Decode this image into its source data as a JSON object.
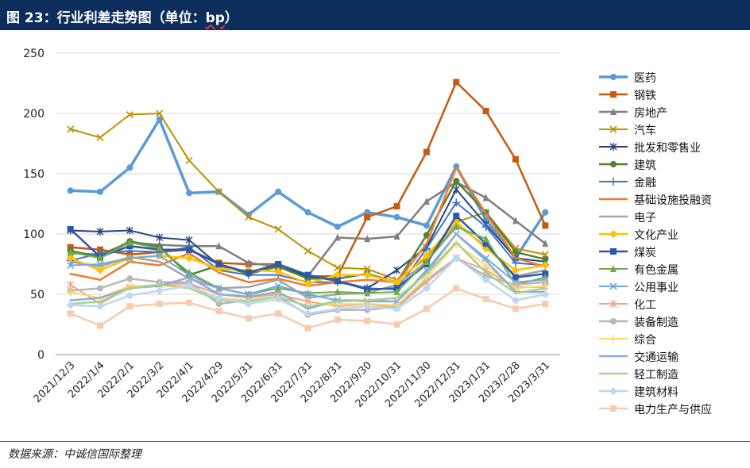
{
  "header": {
    "title_prefix": "图 23：行业利差走势图（单位：",
    "title_unit": "bp",
    "title_suffix": "）"
  },
  "footer": {
    "source": "数据来源：中诚信国际整理"
  },
  "chart_data": {
    "type": "line",
    "title": "",
    "xlabel": "",
    "ylabel": "",
    "ylim": [
      0,
      250
    ],
    "yticks": [
      0,
      50,
      100,
      150,
      200,
      250
    ],
    "grid": "horizontal",
    "legend_position": "right",
    "categories": [
      "2021/12/3",
      "2022/1/4",
      "2022/2/1",
      "2022/3/2",
      "2022/4/1",
      "2022/4/29",
      "2022/5/31",
      "2022/6/31",
      "2022/7/31",
      "2022/8/31",
      "2022/9/30",
      "2022/10/31",
      "2022/11/30",
      "2022/12/31",
      "2023/1/31",
      "2023/2/28",
      "2023/3/31"
    ],
    "series": [
      {
        "name": "医药",
        "color": "#5b9bd5",
        "marker": "circle",
        "width": 3.5,
        "values": [
          136,
          135,
          155,
          195,
          134,
          135,
          116,
          135,
          118,
          106,
          118,
          114,
          107,
          156,
          112,
          80,
          118
        ]
      },
      {
        "name": "钢铁",
        "color": "#c55a11",
        "marker": "square",
        "width": 2.5,
        "values": [
          89,
          87,
          83,
          85,
          87,
          76,
          75,
          75,
          65,
          65,
          114,
          123,
          168,
          226,
          202,
          162,
          107
        ]
      },
      {
        "name": "房地产",
        "color": "#7f7f7f",
        "marker": "triangle",
        "width": 2.5,
        "values": [
          84,
          83,
          93,
          91,
          90,
          90,
          76,
          73,
          65,
          97,
          96,
          98,
          127,
          143,
          130,
          111,
          92
        ]
      },
      {
        "name": "汽车",
        "color": "#bf9000",
        "marker": "x",
        "width": 2,
        "values": [
          187,
          180,
          199,
          200,
          161,
          135,
          114,
          104,
          86,
          72,
          71,
          62,
          80,
          110,
          118,
          88,
          83
        ]
      },
      {
        "name": "批发和零售业",
        "color": "#264478",
        "marker": "asterisk",
        "width": 2,
        "values": [
          103,
          102,
          103,
          97,
          95,
          74,
          68,
          73,
          65,
          61,
          55,
          70,
          89,
          137,
          108,
          80,
          77
        ]
      },
      {
        "name": "建筑",
        "color": "#548235",
        "marker": "circle",
        "width": 2.5,
        "values": [
          86,
          81,
          94,
          89,
          66,
          74,
          67,
          73,
          63,
          63,
          67,
          60,
          99,
          144,
          118,
          85,
          79
        ]
      },
      {
        "name": "金融",
        "color": "#4472c4",
        "marker": "plus",
        "width": 2,
        "values": [
          78,
          84,
          86,
          85,
          89,
          70,
          66,
          66,
          60,
          60,
          55,
          54,
          88,
          126,
          106,
          76,
          74
        ]
      },
      {
        "name": "基础设施投融资",
        "color": "#ed7d31",
        "marker": "none",
        "width": 2.5,
        "values": [
          67,
          62,
          77,
          74,
          84,
          68,
          60,
          63,
          57,
          60,
          62,
          60,
          92,
          155,
          117,
          80,
          73
        ]
      },
      {
        "name": "电子",
        "color": "#a5a5a5",
        "marker": "none",
        "width": 2.5,
        "values": [
          77,
          73,
          81,
          77,
          63,
          55,
          56,
          62,
          47,
          50,
          51,
          58,
          77,
          108,
          90,
          65,
          70
        ]
      },
      {
        "name": "文化产业",
        "color": "#ffc000",
        "marker": "diamond",
        "width": 2.5,
        "values": [
          80,
          70,
          80,
          82,
          80,
          71,
          70,
          69,
          59,
          66,
          66,
          60,
          82,
          110,
          88,
          70,
          74
        ]
      },
      {
        "name": "煤炭",
        "color": "#2e58ab",
        "marker": "square",
        "width": 2.5,
        "values": [
          104,
          81,
          90,
          87,
          87,
          75,
          68,
          75,
          66,
          61,
          54,
          55,
          75,
          115,
          92,
          64,
          67
        ]
      },
      {
        "name": "有色金属",
        "color": "#70ad47",
        "marker": "triangle",
        "width": 2,
        "values": [
          85,
          80,
          93,
          88,
          68,
          55,
          50,
          55,
          51,
          52,
          51,
          52,
          77,
          106,
          96,
          58,
          64
        ]
      },
      {
        "name": "公用事业",
        "color": "#6fa8dc",
        "marker": "x",
        "width": 2,
        "values": [
          74,
          75,
          80,
          82,
          66,
          55,
          50,
          57,
          50,
          45,
          44,
          44,
          70,
          100,
          80,
          60,
          62
        ]
      },
      {
        "name": "化工",
        "color": "#f4a582",
        "marker": "asterisk",
        "width": 2,
        "values": [
          58,
          42,
          56,
          58,
          59,
          50,
          47,
          50,
          44,
          40,
          42,
          39,
          60,
          80,
          70,
          56,
          56
        ]
      },
      {
        "name": "装备制造",
        "color": "#b7b7b7",
        "marker": "circle",
        "width": 2.5,
        "values": [
          53,
          55,
          63,
          60,
          60,
          42,
          45,
          48,
          33,
          37,
          37,
          40,
          62,
          80,
          65,
          58,
          60
        ]
      },
      {
        "name": "综合",
        "color": "#ffd966",
        "marker": "plus",
        "width": 2,
        "values": [
          52,
          47,
          57,
          57,
          57,
          47,
          45,
          48,
          40,
          42,
          42,
          41,
          64,
          92,
          74,
          55,
          57
        ]
      },
      {
        "name": "交通运输",
        "color": "#8faadc",
        "marker": "none",
        "width": 2.5,
        "values": [
          45,
          47,
          55,
          57,
          64,
          50,
          48,
          52,
          38,
          45,
          45,
          44,
          68,
          100,
          78,
          52,
          52
        ]
      },
      {
        "name": "轻工制造",
        "color": "#a9d18e",
        "marker": "none",
        "width": 2.5,
        "values": [
          42,
          44,
          55,
          58,
          55,
          45,
          44,
          48,
          40,
          44,
          45,
          47,
          67,
          93,
          68,
          51,
          55
        ]
      },
      {
        "name": "建筑材料",
        "color": "#bdd7ee",
        "marker": "diamond",
        "width": 2.5,
        "values": [
          41,
          40,
          49,
          53,
          57,
          47,
          42,
          46,
          34,
          38,
          40,
          38,
          55,
          80,
          62,
          45,
          50
        ]
      },
      {
        "name": "电力生产与供应",
        "color": "#f8cbad",
        "marker": "square",
        "width": 2.5,
        "values": [
          34,
          24,
          40,
          42,
          43,
          36,
          30,
          34,
          22,
          29,
          28,
          25,
          38,
          55,
          46,
          38,
          42
        ]
      }
    ]
  }
}
